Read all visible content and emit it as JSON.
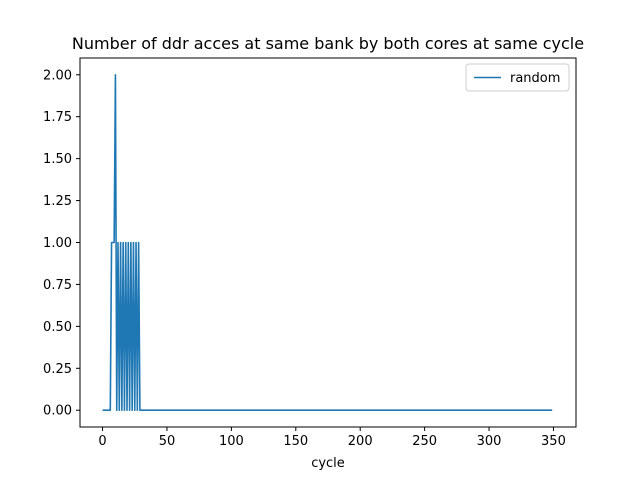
{
  "chart_data": {
    "type": "line",
    "title": "Number of ddr acces at same bank by both cores at same cycle",
    "xlabel": "cycle",
    "ylabel": "",
    "xlim": [
      -17.5,
      367.5
    ],
    "ylim": [
      -0.1,
      2.1
    ],
    "xticks": [
      0,
      50,
      100,
      150,
      200,
      250,
      300,
      350
    ],
    "yticks": [
      0.0,
      0.25,
      0.5,
      0.75,
      1.0,
      1.25,
      1.5,
      1.75,
      2.0
    ],
    "ytick_labels": [
      "0.00",
      "0.25",
      "0.50",
      "0.75",
      "1.00",
      "1.25",
      "1.50",
      "1.75",
      "2.00"
    ],
    "grid": false,
    "legend_position": "top-right",
    "series": [
      {
        "name": "random",
        "color": "#1f77b4",
        "x": [
          0,
          6,
          7,
          8,
          9,
          10,
          11,
          12,
          13,
          14,
          15,
          16,
          17,
          18,
          19,
          20,
          21,
          22,
          23,
          24,
          25,
          26,
          27,
          28,
          29,
          349
        ],
        "y": [
          0,
          0,
          1,
          1,
          1,
          2,
          0,
          1,
          0,
          1,
          0,
          1,
          0,
          1,
          0,
          1,
          0,
          1,
          0,
          1,
          0,
          1,
          0,
          1,
          0,
          0
        ]
      }
    ]
  }
}
